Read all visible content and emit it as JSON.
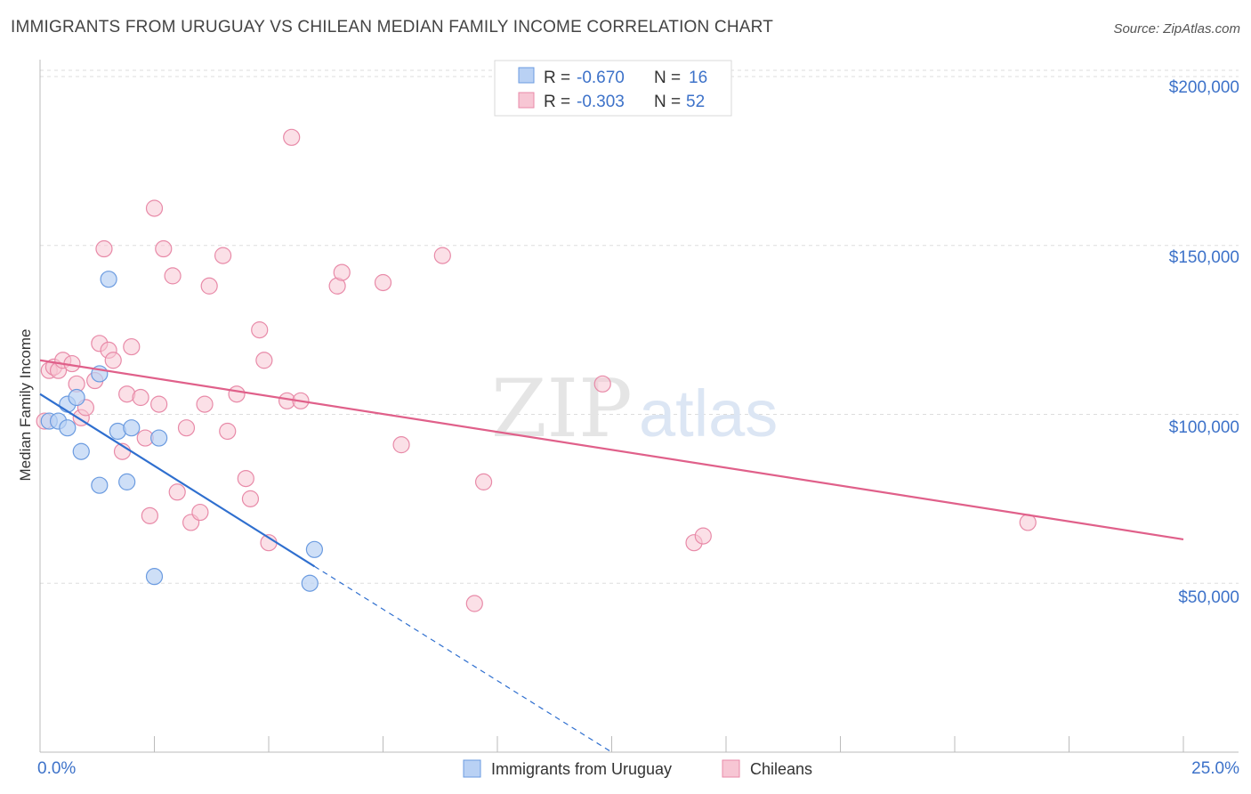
{
  "header": {
    "title": "IMMIGRANTS FROM URUGUAY VS CHILEAN MEDIAN FAMILY INCOME CORRELATION CHART",
    "source": "Source: ZipAtlas.com"
  },
  "watermark": {
    "zip": "ZIP",
    "atlas": "atlas"
  },
  "colors": {
    "uruguay_fill": "#b9d1f4",
    "uruguay_stroke": "#6b9be0",
    "uruguay_line": "#2f6fcf",
    "chilean_fill": "#f7c6d4",
    "chilean_stroke": "#e88aa8",
    "chilean_line": "#e0608a",
    "grid": "#dddddd",
    "tick_label": "#3d72c9"
  },
  "legend": {
    "rows": [
      {
        "r_label": "R = ",
        "r_value": "-0.670",
        "n_label": "N = ",
        "n_value": "16"
      },
      {
        "r_label": "R = ",
        "r_value": "-0.303",
        "n_label": "N = ",
        "n_value": "52"
      }
    ]
  },
  "chart_data": {
    "type": "scatter",
    "title": "IMMIGRANTS FROM URUGUAY VS CHILEAN MEDIAN FAMILY INCOME CORRELATION CHART",
    "xlabel": "",
    "ylabel": "Median Family Income",
    "xlim": [
      0,
      25
    ],
    "ylim": [
      0,
      205000
    ],
    "x_tick_labels": [
      "0.0%",
      "25.0%"
    ],
    "y_ticks": [
      50000,
      100000,
      150000,
      200000
    ],
    "y_tick_labels": [
      "$50,000",
      "$100,000",
      "$150,000",
      "$200,000"
    ],
    "grid": true,
    "legend_position": "top-center",
    "series": [
      {
        "name": "Immigrants from Uruguay",
        "r": -0.67,
        "n": 16,
        "points": [
          [
            0.2,
            98000
          ],
          [
            0.4,
            98000
          ],
          [
            0.6,
            103000
          ],
          [
            0.6,
            96000
          ],
          [
            0.8,
            105000
          ],
          [
            0.9,
            89000
          ],
          [
            1.3,
            112000
          ],
          [
            1.3,
            79000
          ],
          [
            1.5,
            140000
          ],
          [
            1.7,
            95000
          ],
          [
            1.9,
            80000
          ],
          [
            2.0,
            96000
          ],
          [
            2.5,
            52000
          ],
          [
            2.6,
            93000
          ],
          [
            5.9,
            50000
          ],
          [
            6.0,
            60000
          ]
        ],
        "trend": {
          "x0": 0,
          "y0": 106000,
          "x1": 6.0,
          "y1": 55000,
          "dash_x1": 12.5,
          "dash_y1": 0
        }
      },
      {
        "name": "Chileans",
        "r": -0.303,
        "n": 52,
        "points": [
          [
            0.1,
            98000
          ],
          [
            0.2,
            113000
          ],
          [
            0.3,
            114000
          ],
          [
            0.4,
            113000
          ],
          [
            0.5,
            116000
          ],
          [
            0.7,
            115000
          ],
          [
            0.8,
            109000
          ],
          [
            0.9,
            99000
          ],
          [
            1.0,
            102000
          ],
          [
            1.2,
            110000
          ],
          [
            1.3,
            121000
          ],
          [
            1.4,
            149000
          ],
          [
            1.5,
            119000
          ],
          [
            1.6,
            116000
          ],
          [
            1.8,
            89000
          ],
          [
            1.9,
            106000
          ],
          [
            2.0,
            120000
          ],
          [
            2.2,
            105000
          ],
          [
            2.3,
            93000
          ],
          [
            2.4,
            70000
          ],
          [
            2.5,
            161000
          ],
          [
            2.6,
            103000
          ],
          [
            2.7,
            149000
          ],
          [
            2.9,
            141000
          ],
          [
            3.0,
            77000
          ],
          [
            3.2,
            96000
          ],
          [
            3.3,
            68000
          ],
          [
            3.5,
            71000
          ],
          [
            3.6,
            103000
          ],
          [
            3.7,
            138000
          ],
          [
            4.0,
            147000
          ],
          [
            4.1,
            95000
          ],
          [
            4.3,
            106000
          ],
          [
            4.5,
            81000
          ],
          [
            4.6,
            75000
          ],
          [
            4.8,
            125000
          ],
          [
            4.9,
            116000
          ],
          [
            5.0,
            62000
          ],
          [
            5.4,
            104000
          ],
          [
            5.5,
            182000
          ],
          [
            5.7,
            104000
          ],
          [
            6.5,
            138000
          ],
          [
            6.6,
            142000
          ],
          [
            7.5,
            139000
          ],
          [
            7.9,
            91000
          ],
          [
            8.8,
            147000
          ],
          [
            9.5,
            44000
          ],
          [
            9.7,
            80000
          ],
          [
            12.3,
            109000
          ],
          [
            14.3,
            62000
          ],
          [
            14.5,
            64000
          ],
          [
            21.6,
            68000
          ]
        ],
        "trend": {
          "x0": 0,
          "y0": 116000,
          "x1": 25.0,
          "y1": 63000
        }
      }
    ]
  }
}
